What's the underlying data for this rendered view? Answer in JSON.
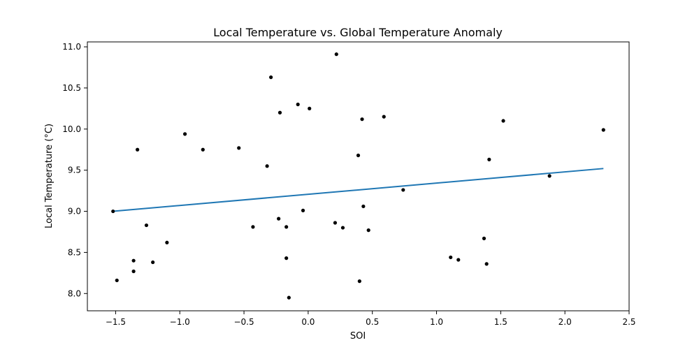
{
  "chart_data": {
    "type": "scatter",
    "title": "Local Temperature vs. Global Temperature Anomaly",
    "xlabel": "SOI",
    "ylabel": "Local Temperature ($^\\circ$C)",
    "ylabel_display": "Local Temperature (°C)",
    "xlim": [
      -1.72,
      2.5
    ],
    "ylim": [
      7.79,
      11.06
    ],
    "xticks": [
      -1.5,
      -1.0,
      -0.5,
      0.0,
      0.5,
      1.0,
      1.5,
      2.0,
      2.5
    ],
    "xtick_labels": [
      "−1.5",
      "−1.0",
      "−0.5",
      "0.0",
      "0.5",
      "1.0",
      "1.5",
      "2.0",
      "2.5"
    ],
    "yticks": [
      8.0,
      8.5,
      9.0,
      9.5,
      10.0,
      10.5,
      11.0
    ],
    "ytick_labels": [
      "8.0",
      "8.5",
      "9.0",
      "9.5",
      "10.0",
      "10.5",
      "11.0"
    ],
    "grid": false,
    "legend": "none",
    "colors": {
      "points": "#000000",
      "fit_line": "#1f77b4"
    },
    "points": [
      [
        -1.52,
        9.0
      ],
      [
        -1.49,
        8.16
      ],
      [
        -1.36,
        8.4
      ],
      [
        -1.36,
        8.27
      ],
      [
        -1.33,
        9.75
      ],
      [
        -1.26,
        8.83
      ],
      [
        -1.21,
        8.38
      ],
      [
        -1.1,
        8.62
      ],
      [
        -0.96,
        9.94
      ],
      [
        -0.82,
        9.75
      ],
      [
        -0.54,
        9.77
      ],
      [
        -0.43,
        8.81
      ],
      [
        -0.32,
        9.55
      ],
      [
        -0.29,
        10.63
      ],
      [
        -0.23,
        8.91
      ],
      [
        -0.22,
        10.2
      ],
      [
        -0.17,
        8.81
      ],
      [
        -0.17,
        8.43
      ],
      [
        -0.15,
        7.95
      ],
      [
        -0.08,
        10.3
      ],
      [
        -0.04,
        9.01
      ],
      [
        0.01,
        10.25
      ],
      [
        0.21,
        8.86
      ],
      [
        0.22,
        10.91
      ],
      [
        0.27,
        8.8
      ],
      [
        0.39,
        9.68
      ],
      [
        0.4,
        8.15
      ],
      [
        0.42,
        10.12
      ],
      [
        0.43,
        9.06
      ],
      [
        0.47,
        8.77
      ],
      [
        0.59,
        10.15
      ],
      [
        0.74,
        9.26
      ],
      [
        1.11,
        8.44
      ],
      [
        1.17,
        8.41
      ],
      [
        1.37,
        8.67
      ],
      [
        1.39,
        8.36
      ],
      [
        1.41,
        9.63
      ],
      [
        1.52,
        10.1
      ],
      [
        1.88,
        9.43
      ],
      [
        2.3,
        9.99
      ]
    ],
    "fit_line": {
      "x": [
        -1.52,
        2.3
      ],
      "y": [
        9.0,
        9.52
      ]
    }
  }
}
